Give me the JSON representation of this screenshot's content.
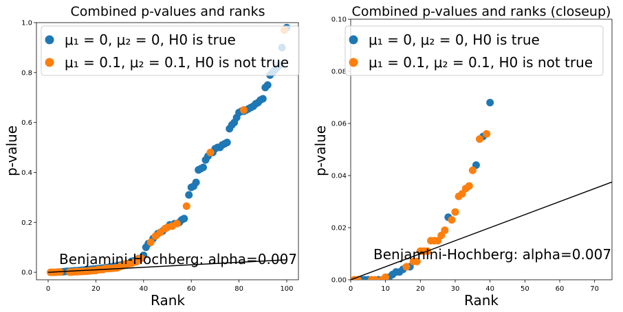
{
  "chart_data": [
    {
      "type": "scatter",
      "title": "Combined p-values and ranks",
      "xlabel": "Rank",
      "ylabel": "p-value",
      "xlim": [
        -4.9,
        104.9
      ],
      "ylim": [
        -0.03,
        1.0
      ],
      "xticks": [
        0,
        20,
        40,
        60,
        80,
        100
      ],
      "yticks": [
        0.0,
        0.2,
        0.4,
        0.6,
        0.8,
        1.0
      ],
      "xtick_labels": [
        "0",
        "20",
        "40",
        "60",
        "80",
        "100"
      ],
      "ytick_labels": [
        "0.0",
        "0.2",
        "0.4",
        "0.6",
        "0.8",
        "1.0"
      ],
      "legend_position": "top",
      "series": [
        {
          "name": "μ₁ = 0, μ₂ = 0, H0 is true",
          "color": "#1f77b4",
          "x": [
            6,
            7,
            8,
            9,
            10,
            11,
            12,
            13,
            14,
            15,
            16,
            17,
            18,
            19,
            20,
            21,
            22,
            23,
            24,
            25,
            26,
            27,
            28,
            29,
            30,
            31,
            32,
            33,
            35,
            36,
            37,
            38,
            39,
            40,
            41,
            42,
            44,
            46,
            48,
            51,
            53,
            55,
            56,
            57,
            59,
            60,
            61,
            62,
            63,
            64,
            65,
            66,
            67,
            69,
            70,
            71,
            72,
            73,
            74,
            75,
            76,
            77,
            78,
            79,
            80,
            81,
            82,
            83,
            84,
            85,
            86,
            87,
            88,
            89,
            90,
            91,
            92,
            93,
            94,
            95,
            96,
            97,
            98,
            99,
            100
          ],
          "y": [
            0.002,
            0.003,
            0.004,
            0.004,
            0.005,
            0.006,
            0.006,
            0.007,
            0.008,
            0.009,
            0.01,
            0.011,
            0.012,
            0.013,
            0.014,
            0.015,
            0.016,
            0.017,
            0.018,
            0.019,
            0.021,
            0.023,
            0.024,
            0.026,
            0.028,
            0.03,
            0.032,
            0.035,
            0.044,
            0.046,
            0.05,
            0.055,
            0.056,
            0.068,
            0.1,
            0.115,
            0.135,
            0.155,
            0.165,
            0.19,
            0.195,
            0.2,
            0.21,
            0.215,
            0.31,
            0.34,
            0.345,
            0.36,
            0.41,
            0.415,
            0.42,
            0.45,
            0.465,
            0.48,
            0.495,
            0.5,
            0.5,
            0.51,
            0.515,
            0.52,
            0.575,
            0.59,
            0.6,
            0.62,
            0.64,
            0.645,
            0.645,
            0.65,
            0.655,
            0.66,
            0.665,
            0.675,
            0.68,
            0.69,
            0.695,
            0.74,
            0.75,
            0.79,
            0.8,
            0.81,
            0.82,
            0.83,
            0.9,
            0.97,
            0.98
          ]
        },
        {
          "name": "μ₁ = 0.1, μ₂ = 0.1, H0 is not true",
          "color": "#ff7f0e",
          "x": [
            1,
            2,
            3,
            4,
            5,
            9,
            10,
            11,
            12,
            13,
            14,
            15,
            16,
            17,
            18,
            19,
            20,
            21,
            22,
            23,
            24,
            25,
            26,
            27,
            28,
            29,
            30,
            31,
            32,
            33,
            34,
            35,
            36,
            37,
            38,
            39,
            43,
            45,
            47,
            49,
            50,
            52,
            54,
            58,
            68,
            82,
            99
          ],
          "y": [
            0.0,
            0.0,
            0.0,
            0.001,
            0.001,
            0.001,
            0.001,
            0.002,
            0.002,
            0.003,
            0.003,
            0.004,
            0.004,
            0.005,
            0.006,
            0.007,
            0.007,
            0.011,
            0.011,
            0.011,
            0.015,
            0.015,
            0.015,
            0.016,
            0.017,
            0.018,
            0.023,
            0.025,
            0.032,
            0.033,
            0.035,
            0.036,
            0.04,
            0.042,
            0.054,
            0.056,
            0.12,
            0.145,
            0.16,
            0.175,
            0.18,
            0.185,
            0.195,
            0.265,
            0.48,
            0.65,
            0.97
          ]
        }
      ],
      "annotation": "Benjamini-Hochberg: alpha=0.007",
      "line": {
        "x": [
          0,
          100
        ],
        "y": [
          0,
          0.05
        ]
      }
    },
    {
      "type": "scatter",
      "title": "Combined p-values and ranks (closeup)",
      "xlabel": "Rank",
      "ylabel": "p-value",
      "xlim": [
        0,
        75
      ],
      "ylim": [
        0,
        0.1
      ],
      "xticks": [
        0,
        10,
        20,
        30,
        40,
        50,
        60,
        70
      ],
      "yticks": [
        0.0,
        0.02,
        0.04,
        0.06,
        0.08,
        0.1
      ],
      "xtick_labels": [
        "0",
        "10",
        "20",
        "30",
        "40",
        "50",
        "60",
        "70"
      ],
      "ytick_labels": [
        "0.00",
        "0.02",
        "0.04",
        "0.06",
        "0.08",
        "0.10"
      ],
      "legend_position": "top",
      "series": [
        {
          "name": "μ₁ = 0, μ₂ = 0, H0 is true",
          "color": "#1f77b4",
          "x": [
            3,
            4,
            5,
            8,
            11,
            12,
            13,
            14,
            15,
            17,
            28,
            36,
            38,
            40
          ],
          "y": [
            0.0,
            0.0,
            0.0,
            0.0,
            0.001,
            0.002,
            0.003,
            0.003,
            0.004,
            0.005,
            0.024,
            0.044,
            0.055,
            0.068
          ]
        },
        {
          "name": "μ₁ = 0.1, μ₂ = 0.1, H0 is not true",
          "color": "#ff7f0e",
          "x": [
            1,
            2,
            6,
            7,
            9,
            10,
            16,
            18,
            19,
            20,
            21,
            22,
            23,
            24,
            25,
            26,
            27,
            29,
            30,
            31,
            32,
            33,
            34,
            35,
            37,
            39
          ],
          "y": [
            0.0,
            0.0,
            0.0,
            0.0,
            0.0,
            0.001,
            0.005,
            0.007,
            0.007,
            0.011,
            0.011,
            0.011,
            0.015,
            0.015,
            0.015,
            0.017,
            0.019,
            0.023,
            0.026,
            0.032,
            0.033,
            0.035,
            0.036,
            0.042,
            0.054,
            0.056
          ]
        }
      ],
      "annotation": "Benjamini-Hochberg: alpha=0.007",
      "line": {
        "x": [
          0,
          75
        ],
        "y": [
          0,
          0.0375
        ]
      }
    }
  ]
}
